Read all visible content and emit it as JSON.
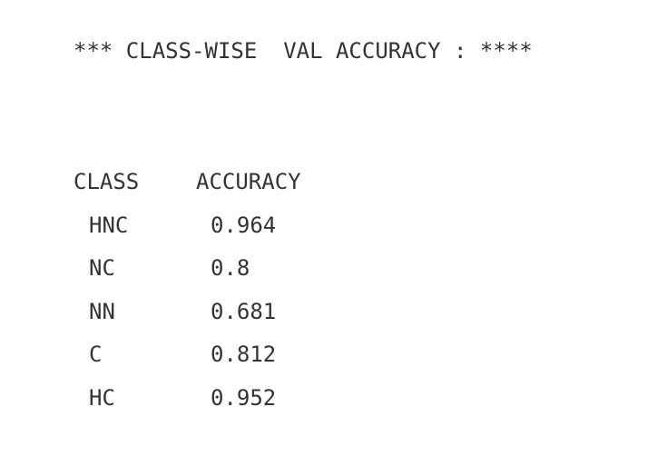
{
  "output": {
    "heading": "*** CLASS-WISE  VAL ACCURACY : ****"
  },
  "table": {
    "headers": [
      "CLASS",
      "ACCURACY"
    ],
    "rows": [
      {
        "class": "HNC",
        "accuracy": "0.964"
      },
      {
        "class": "NC",
        "accuracy": "0.8"
      },
      {
        "class": "NN",
        "accuracy": "0.681"
      },
      {
        "class": "C",
        "accuracy": "0.812"
      },
      {
        "class": "HC",
        "accuracy": "0.952"
      }
    ]
  },
  "colors": {
    "text": "#333333",
    "background": "#ffffff"
  }
}
